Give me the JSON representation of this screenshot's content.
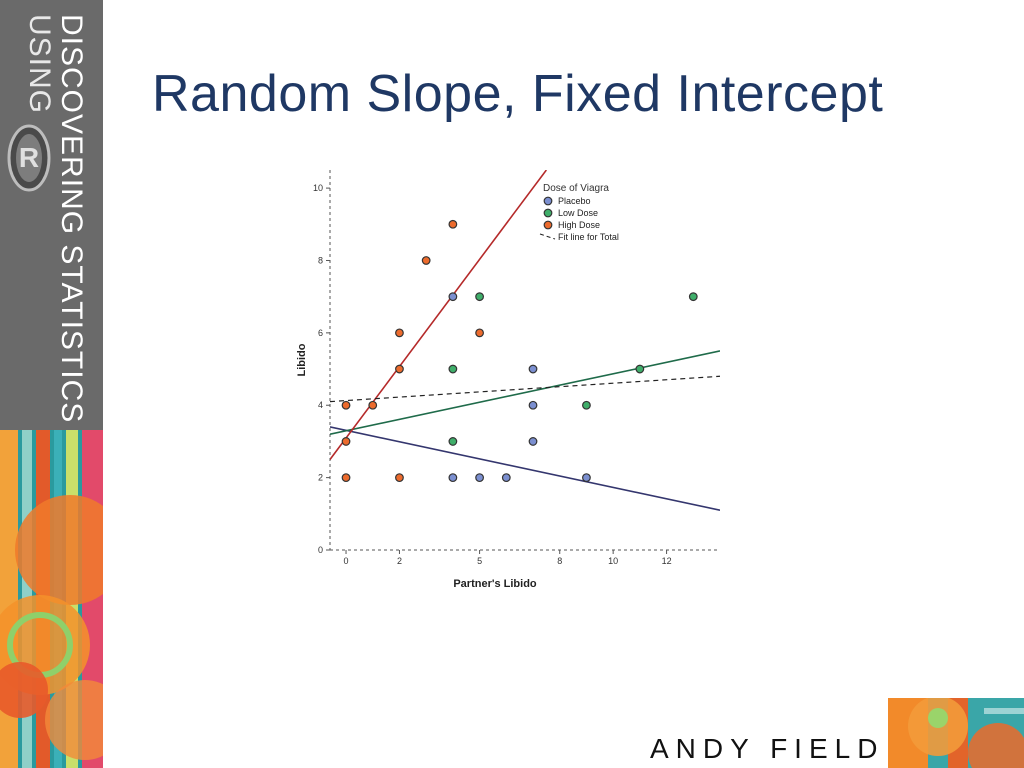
{
  "sidebar": {
    "line1": "DISCOVERING STATISTICS",
    "line2": "USING",
    "logo_letter": "R"
  },
  "slide": {
    "title": "Random Slope, Fixed Intercept"
  },
  "footer": {
    "brand": "ANDY FIELD"
  },
  "colors": {
    "title": "#1f3864",
    "placebo": "#7b8fd0",
    "low_dose": "#3fae6a",
    "high_dose": "#ec6b2d",
    "placebo_line": "#34366e",
    "low_line": "#1f6b4a",
    "high_line": "#b52a2a"
  },
  "chart_data": {
    "type": "scatter",
    "xlabel": "Partner's Libido",
    "ylabel": "Libido",
    "xticks": [
      0,
      2,
      5,
      8,
      10,
      12
    ],
    "yticks": [
      0,
      2,
      4,
      6,
      8,
      10
    ],
    "xlim": [
      -0.6,
      14
    ],
    "ylim": [
      0,
      10.5
    ],
    "legend": {
      "title": "Dose of Viagra",
      "position": "top-right",
      "entries": [
        "Placebo",
        "Low Dose",
        "High Dose",
        "Fit line for Total"
      ]
    },
    "series": [
      {
        "name": "Placebo",
        "points": [
          [
            4,
            7
          ],
          [
            7,
            5
          ],
          [
            7,
            4
          ],
          [
            7,
            3
          ],
          [
            4,
            2
          ],
          [
            5,
            2
          ],
          [
            6,
            2
          ],
          [
            9,
            2
          ]
        ],
        "fit_line": [
          [
            -0.6,
            3.4
          ],
          [
            14,
            1.1
          ]
        ]
      },
      {
        "name": "Low Dose",
        "points": [
          [
            5,
            7
          ],
          [
            13,
            7
          ],
          [
            4,
            5
          ],
          [
            11,
            5
          ],
          [
            9,
            4
          ],
          [
            4,
            3
          ]
        ],
        "fit_line": [
          [
            -0.6,
            3.2
          ],
          [
            14,
            5.5
          ]
        ]
      },
      {
        "name": "High Dose",
        "points": [
          [
            4,
            9
          ],
          [
            3,
            8
          ],
          [
            2,
            6
          ],
          [
            5,
            6
          ],
          [
            2,
            5
          ],
          [
            0,
            4
          ],
          [
            1,
            4
          ],
          [
            0,
            3
          ],
          [
            0,
            2
          ],
          [
            2,
            2
          ]
        ],
        "fit_line": [
          [
            -0.6,
            2.5
          ],
          [
            7.5,
            10.5
          ]
        ]
      },
      {
        "name": "Fit line for Total",
        "points": [],
        "fit_line": [
          [
            -0.6,
            4.1
          ],
          [
            14,
            4.8
          ]
        ]
      }
    ]
  }
}
